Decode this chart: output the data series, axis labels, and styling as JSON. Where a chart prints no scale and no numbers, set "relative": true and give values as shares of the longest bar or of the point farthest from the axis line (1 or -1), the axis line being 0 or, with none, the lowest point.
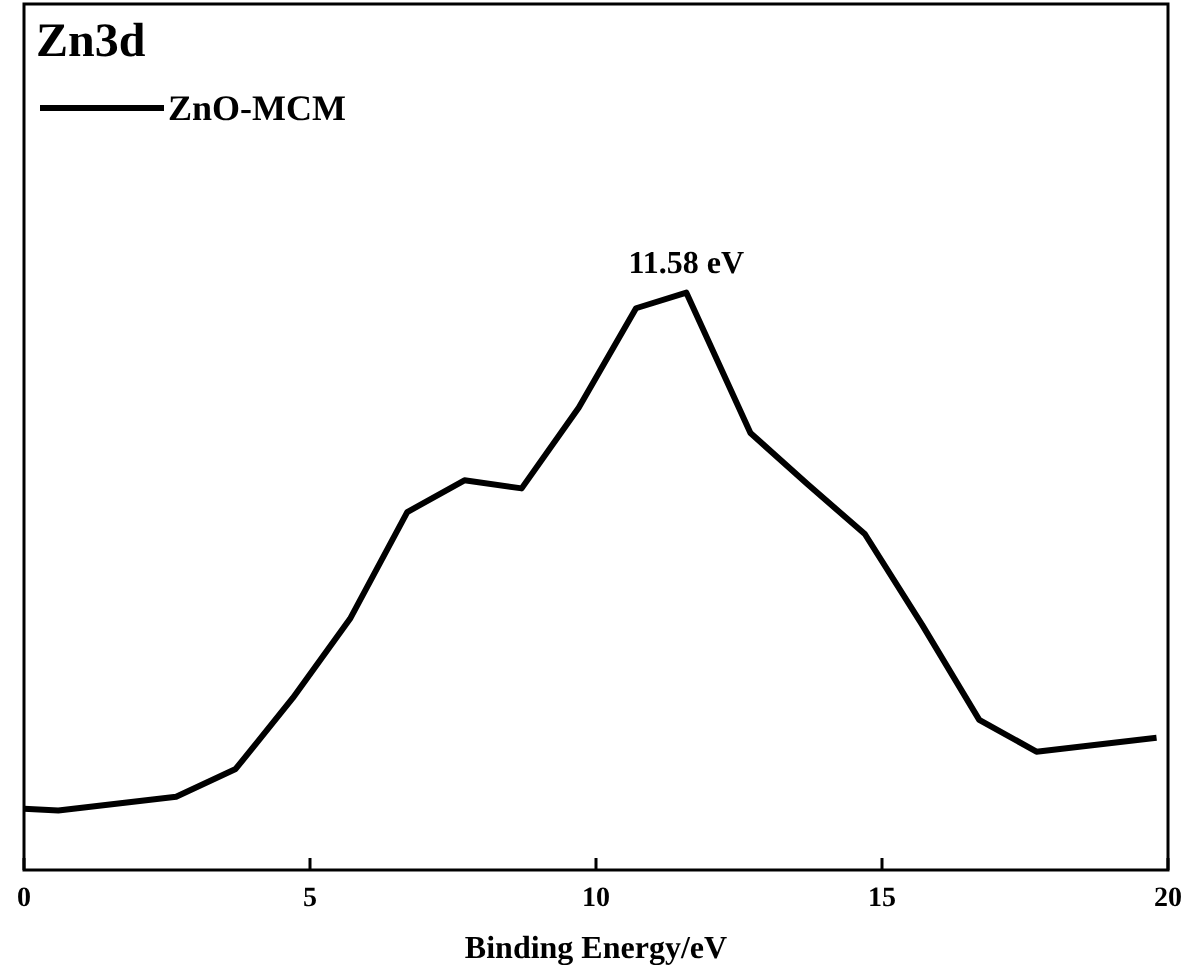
{
  "chart_data": {
    "type": "line",
    "title": "Zn3d",
    "xlabel": "Binding Energy/eV",
    "relative": true,
    "xlim": [
      0,
      20
    ],
    "xticks": [
      0,
      5,
      10,
      15,
      20
    ],
    "x": [
      0,
      0.6,
      2.66,
      3.7,
      4.7,
      5.7,
      6.7,
      7.7,
      8.7,
      9.7,
      10.7,
      11.58,
      12.7,
      13.7,
      14.7,
      15.7,
      16.7,
      17.7,
      19.8
    ],
    "series": [
      {
        "name": "ZnO-MCM",
        "color": "#000000",
        "values": [
          0.106,
          0.103,
          0.127,
          0.175,
          0.298,
          0.435,
          0.62,
          0.675,
          0.661,
          0.801,
          0.973,
          1,
          0.757,
          0.668,
          0.582,
          0.425,
          0.26,
          0.205,
          0.229
        ]
      }
    ],
    "annotations": [
      {
        "text": "11.58 eV",
        "x": 11.58,
        "y": 1
      }
    ],
    "legend": "top left",
    "marker": "none",
    "line_style": "solid",
    "grid": false
  }
}
